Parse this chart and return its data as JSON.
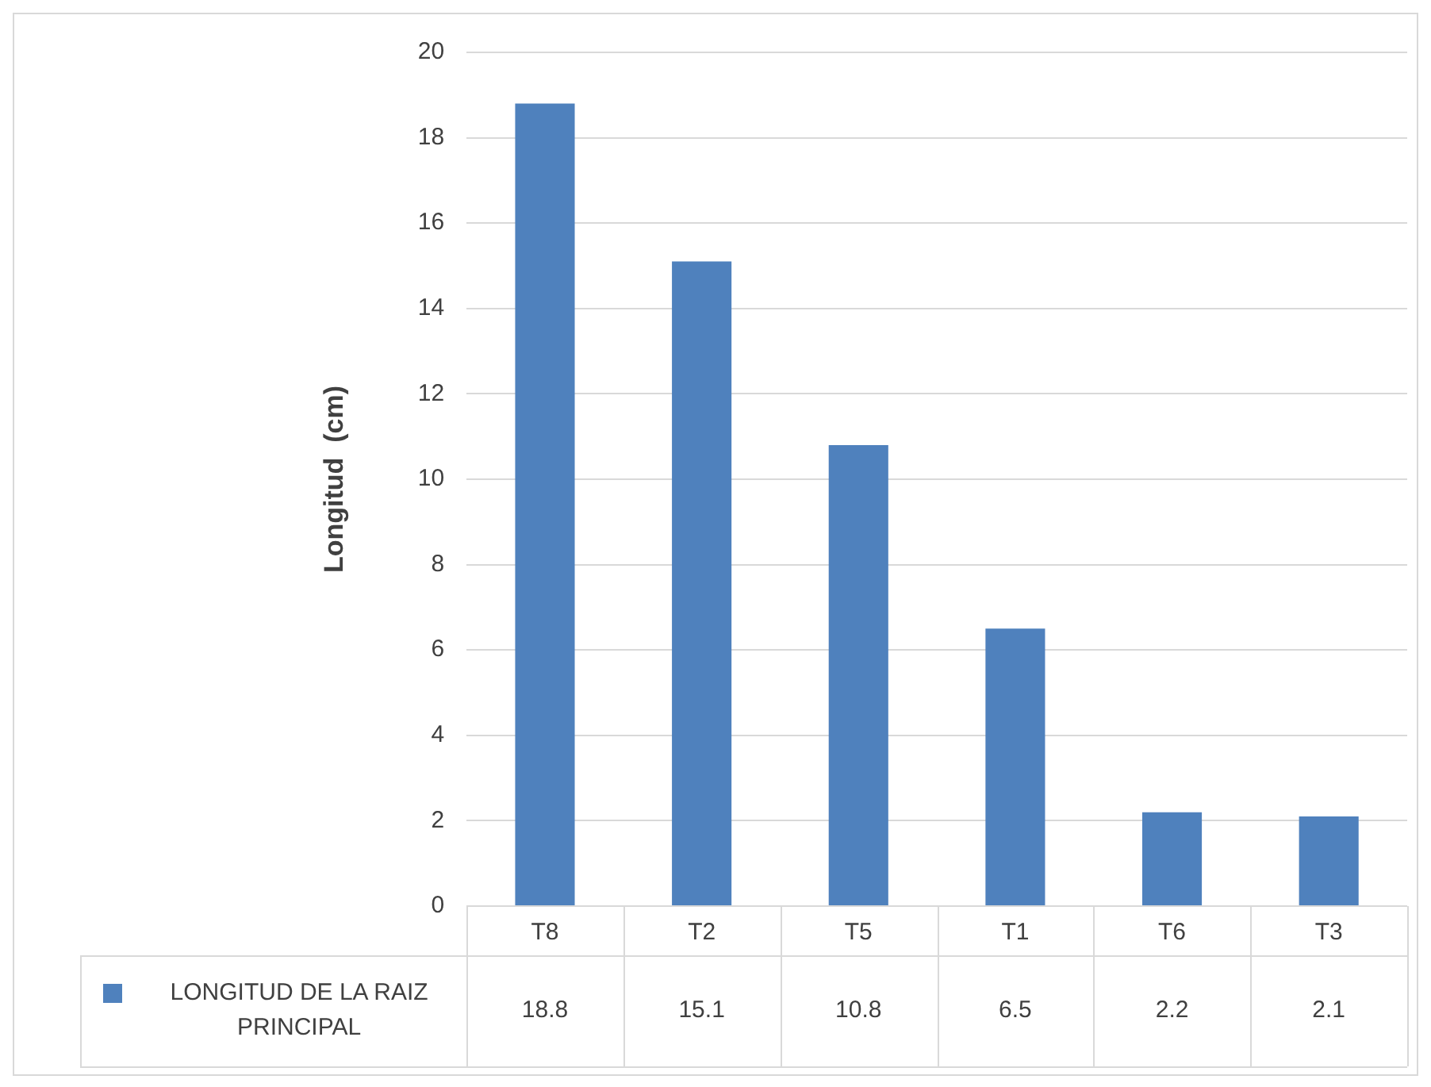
{
  "chart_data": {
    "type": "bar",
    "ylabel": "Longitud  (cm)",
    "categories": [
      "T8",
      "T2",
      "T5",
      "T1",
      "T6",
      "T3"
    ],
    "series": [
      {
        "name": "LONGITUD DE LA RAIZ PRINCIPAL",
        "color": "#4f81bd",
        "values": [
          18.8,
          15.1,
          10.8,
          6.5,
          2.2,
          2.1
        ]
      }
    ],
    "ylim": [
      0,
      20
    ],
    "yticks": [
      0,
      2,
      4,
      6,
      8,
      10,
      12,
      14,
      16,
      18,
      20
    ],
    "grid": "y",
    "legend": "bottom",
    "data_labels": true
  }
}
